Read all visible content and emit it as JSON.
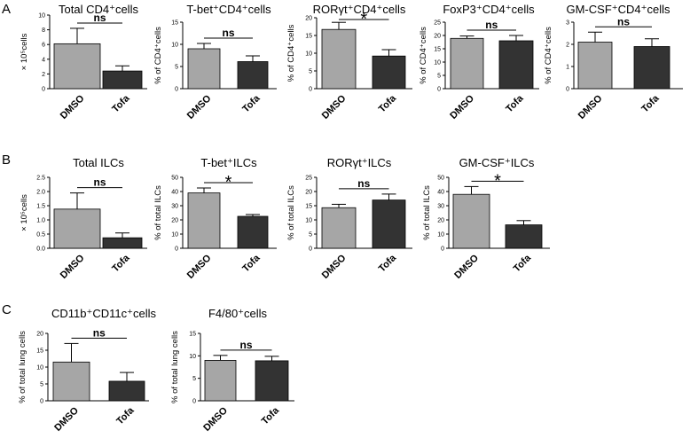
{
  "figure": {
    "panel_labels": [
      "A",
      "B",
      "C"
    ],
    "colors": {
      "dmso": "#a6a6a6",
      "tofa": "#333333",
      "axis": "#000000"
    }
  },
  "chart_data": [
    {
      "id": "a1",
      "panel": "A",
      "type": "bar",
      "title": "Total CD4⁺cells",
      "ylabel": "× 10⁵cells",
      "ylim": [
        0,
        10
      ],
      "yticks": [
        "0",
        "2",
        "4",
        "6",
        "8",
        "10"
      ],
      "categories": [
        "DMSO",
        "Tofa"
      ],
      "values": [
        6.1,
        2.4
      ],
      "errors": [
        2.1,
        0.7
      ],
      "significance": "ns"
    },
    {
      "id": "a2",
      "panel": "A",
      "type": "bar",
      "title": "T-bet⁺CD4⁺cells",
      "ylabel": "% of CD4⁺cells",
      "ylim": [
        0,
        15
      ],
      "yticks": [
        "0",
        "5",
        "10",
        "15"
      ],
      "categories": [
        "DMSO",
        "Tofa"
      ],
      "values": [
        9.0,
        6.1
      ],
      "errors": [
        1.2,
        1.3
      ],
      "significance": "ns"
    },
    {
      "id": "a3",
      "panel": "A",
      "type": "bar",
      "title": "RORγt⁺CD4⁺cells",
      "ylabel": "% of CD4⁺cells",
      "ylim": [
        0,
        20
      ],
      "yticks": [
        "0",
        "5",
        "10",
        "15",
        "20"
      ],
      "categories": [
        "DMSO",
        "Tofa"
      ],
      "values": [
        16.7,
        9.2
      ],
      "errors": [
        2.0,
        1.8
      ],
      "significance": "*"
    },
    {
      "id": "a4",
      "panel": "A",
      "type": "bar",
      "title": "FoxP3⁺CD4⁺cells",
      "ylabel": "% of CD4⁺cells",
      "ylim": [
        0,
        25
      ],
      "yticks": [
        "0",
        "5",
        "10",
        "15",
        "20",
        "25"
      ],
      "categories": [
        "DMSO",
        "Tofa"
      ],
      "values": [
        18.9,
        18.0
      ],
      "errors": [
        0.9,
        2.0
      ],
      "significance": "ns"
    },
    {
      "id": "a5",
      "panel": "A",
      "type": "bar",
      "title": "GM-CSF⁺CD4⁺cells",
      "ylabel": "% of CD4⁺cells",
      "ylim": [
        0,
        3
      ],
      "yticks": [
        "0",
        "1",
        "2",
        "3"
      ],
      "categories": [
        "DMSO",
        "Tofa"
      ],
      "values": [
        2.1,
        1.9
      ],
      "errors": [
        0.45,
        0.35
      ],
      "significance": "ns"
    },
    {
      "id": "b1",
      "panel": "B",
      "type": "bar",
      "title": "Total ILCs",
      "ylabel": "× 10⁵cells",
      "ylim": [
        0,
        2.5
      ],
      "yticks": [
        "0.0",
        "0.5",
        "1.0",
        "1.5",
        "2.0",
        "2.5"
      ],
      "categories": [
        "DMSO",
        "Tofa"
      ],
      "values": [
        1.38,
        0.37
      ],
      "errors": [
        0.57,
        0.17
      ],
      "significance": "ns"
    },
    {
      "id": "b2",
      "panel": "B",
      "type": "bar",
      "title": "T-bet⁺ILCs",
      "ylabel": "% of total ILCs",
      "ylim": [
        0,
        50
      ],
      "yticks": [
        "0",
        "10",
        "20",
        "30",
        "40",
        "50"
      ],
      "categories": [
        "DMSO",
        "Tofa"
      ],
      "values": [
        39,
        22.5
      ],
      "errors": [
        3.5,
        1.3
      ],
      "significance": "*"
    },
    {
      "id": "b3",
      "panel": "B",
      "type": "bar",
      "title": "RORγt⁺ILCs",
      "ylabel": "% of total ILCs",
      "ylim": [
        0,
        25
      ],
      "yticks": [
        "0",
        "5",
        "10",
        "15",
        "20",
        "25"
      ],
      "categories": [
        "DMSO",
        "Tofa"
      ],
      "values": [
        14.3,
        17.0
      ],
      "errors": [
        1.2,
        2.1
      ],
      "significance": "ns"
    },
    {
      "id": "b4",
      "panel": "B",
      "type": "bar",
      "title": "GM-CSF⁺ILCs",
      "ylabel": "% of total ILCs",
      "ylim": [
        0,
        50
      ],
      "yticks": [
        "0",
        "10",
        "20",
        "30",
        "40",
        "50"
      ],
      "categories": [
        "DMSO",
        "Tofa"
      ],
      "values": [
        38,
        16.5
      ],
      "errors": [
        5.5,
        3.0
      ],
      "significance": "*"
    },
    {
      "id": "c1",
      "panel": "C",
      "type": "bar",
      "title": "CD11b⁺CD11c⁺cells",
      "ylabel": "% of total lung cells",
      "ylim": [
        0,
        20
      ],
      "yticks": [
        "0",
        "5",
        "10",
        "15",
        "20"
      ],
      "categories": [
        "DMSO",
        "Tofa"
      ],
      "values": [
        11.5,
        5.8
      ],
      "errors": [
        5.5,
        2.6
      ],
      "significance": "ns"
    },
    {
      "id": "c2",
      "panel": "C",
      "type": "bar",
      "title": "F4/80⁺cells",
      "ylabel": "% of total lung cells",
      "ylim": [
        0,
        15
      ],
      "yticks": [
        "0",
        "5",
        "10",
        "15"
      ],
      "categories": [
        "DMSO",
        "Tofa"
      ],
      "values": [
        9.0,
        8.9
      ],
      "errors": [
        1.1,
        1.0
      ],
      "significance": "ns"
    }
  ]
}
